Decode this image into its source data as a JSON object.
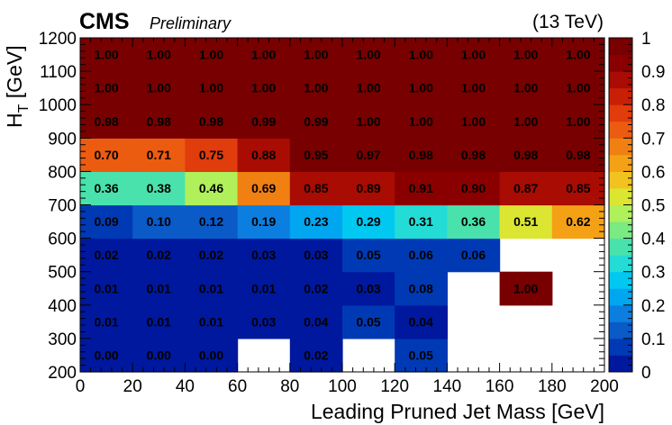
{
  "header": {
    "experiment": "CMS",
    "status": "Preliminary",
    "energy": "(13 TeV)"
  },
  "chart_data": {
    "type": "heatmap",
    "xlabel": "Leading Pruned Jet Mass [GeV]",
    "ylabel_main": "H",
    "ylabel_sub": "T",
    "ylabel_unit": " [GeV]",
    "xlim": [
      0,
      200
    ],
    "ylim": [
      200,
      1200
    ],
    "x_edges": [
      0,
      20,
      40,
      60,
      80,
      100,
      120,
      140,
      160,
      180,
      200
    ],
    "y_edges": [
      200,
      300,
      400,
      500,
      600,
      700,
      800,
      900,
      1000,
      1100,
      1200
    ],
    "x_ticks": [
      "0",
      "20",
      "40",
      "60",
      "80",
      "100",
      "120",
      "140",
      "160",
      "180",
      "200"
    ],
    "y_ticks": [
      "200",
      "300",
      "400",
      "500",
      "600",
      "700",
      "800",
      "900",
      "1000",
      "1100",
      "1200"
    ],
    "z_ticks": [
      "0",
      "0.1",
      "0.2",
      "0.3",
      "0.4",
      "0.5",
      "0.6",
      "0.7",
      "0.8",
      "0.9",
      "1"
    ],
    "zlim": [
      0,
      1
    ],
    "rows_bottom_to_top": [
      [
        "0.00",
        "0.00",
        "0.00",
        null,
        "0.02",
        null,
        "0.05",
        null,
        null,
        null
      ],
      [
        "0.01",
        "0.01",
        "0.01",
        "0.03",
        "0.04",
        "0.05",
        "0.04",
        null,
        null,
        null
      ],
      [
        "0.01",
        "0.01",
        "0.01",
        "0.01",
        "0.02",
        "0.03",
        "0.08",
        null,
        "1.00",
        null
      ],
      [
        "0.02",
        "0.02",
        "0.02",
        "0.03",
        "0.03",
        "0.05",
        "0.06",
        "0.06",
        null,
        null
      ],
      [
        "0.09",
        "0.10",
        "0.12",
        "0.19",
        "0.23",
        "0.29",
        "0.31",
        "0.36",
        "0.51",
        "0.62"
      ],
      [
        "0.36",
        "0.38",
        "0.46",
        "0.69",
        "0.85",
        "0.89",
        "0.91",
        "0.90",
        "0.87",
        "0.85"
      ],
      [
        "0.70",
        "0.71",
        "0.75",
        "0.88",
        "0.95",
        "0.97",
        "0.98",
        "0.98",
        "0.98",
        "0.98"
      ],
      [
        "0.98",
        "0.98",
        "0.98",
        "0.99",
        "0.99",
        "1.00",
        "1.00",
        "1.00",
        "1.00",
        "1.00"
      ],
      [
        "1.00",
        "1.00",
        "1.00",
        "1.00",
        "1.00",
        "1.00",
        "1.00",
        "1.00",
        "1.00",
        "1.00"
      ],
      [
        "1.00",
        "1.00",
        "1.00",
        "1.00",
        "1.00",
        "1.00",
        "1.00",
        "1.00",
        "1.00",
        "1.00"
      ]
    ],
    "palette": [
      "#00189e",
      "#0039b4",
      "#0a5ac8",
      "#0c7ee0",
      "#00a6f0",
      "#00c8f0",
      "#24dcd6",
      "#49e2ad",
      "#7aea82",
      "#b0f05a",
      "#dce632",
      "#f2c21e",
      "#f4a116",
      "#f08012",
      "#ec5c10",
      "#e03c0c",
      "#c82006",
      "#a80c02",
      "#8a0000",
      "#780000"
    ]
  }
}
